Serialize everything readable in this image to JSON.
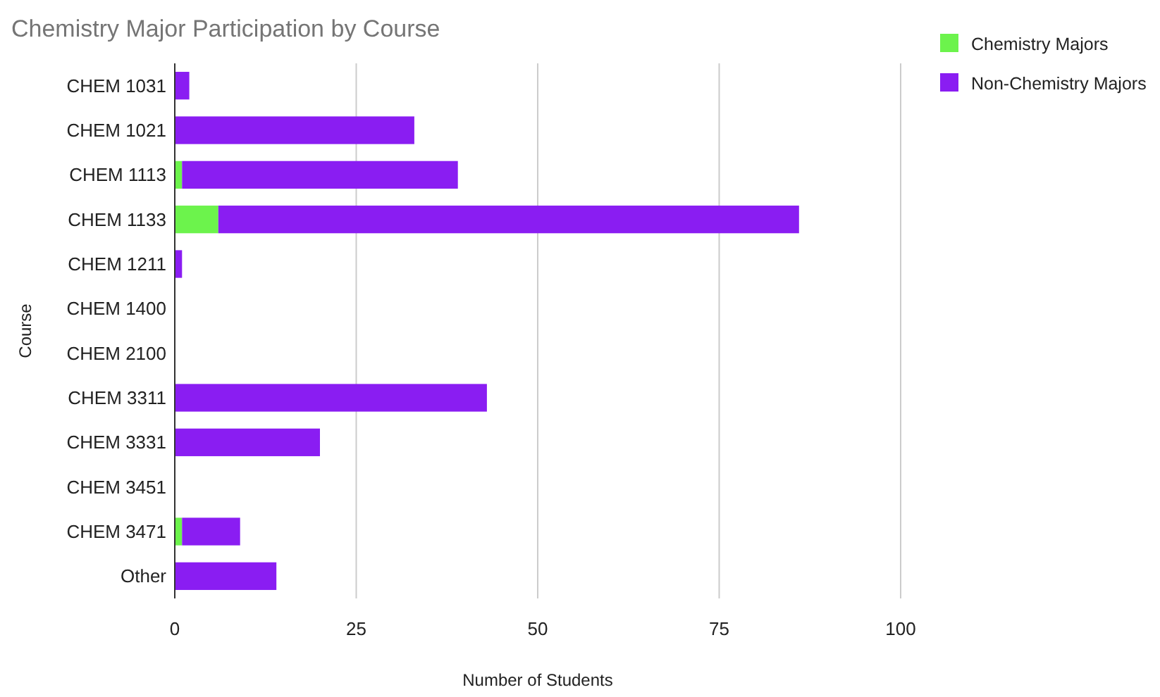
{
  "chart_data": {
    "type": "bar",
    "title": "Chemistry Major Participation by Course",
    "xlabel": "Number of Students",
    "ylabel": "Course",
    "orientation": "horizontal",
    "stacked": true,
    "categories": [
      "CHEM 1031",
      "CHEM 1021",
      "CHEM 1113",
      "CHEM 1133",
      "CHEM 1211",
      "CHEM 1400",
      "CHEM 2100",
      "CHEM 3311",
      "CHEM 3331",
      "CHEM 3451",
      "CHEM 3471",
      "Other"
    ],
    "series": [
      {
        "name": "Chemistry Majors",
        "color": "#6cf34c",
        "values": [
          0,
          0,
          1,
          6,
          0,
          0,
          0,
          0,
          0,
          0,
          1,
          0
        ]
      },
      {
        "name": "Non-Chemistry Majors",
        "color": "#8a1df2",
        "values": [
          2,
          33,
          38,
          80,
          1,
          0,
          0,
          43,
          20,
          0,
          8,
          14
        ]
      }
    ],
    "xlim": [
      0,
      100
    ],
    "xticks": [
      0,
      25,
      50,
      75,
      100
    ],
    "grid": "x",
    "legend": "top right"
  }
}
